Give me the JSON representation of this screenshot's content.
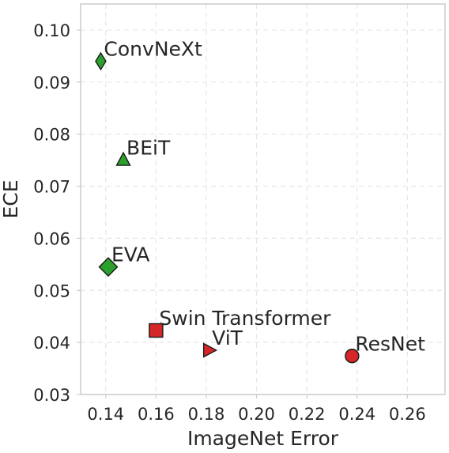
{
  "chart_data": {
    "type": "scatter",
    "xlabel": "ImageNet Error",
    "ylabel": "ECE",
    "xlim": [
      0.13,
      0.275
    ],
    "ylim": [
      0.03,
      0.105
    ],
    "xticks": [
      "0.14",
      "0.16",
      "0.18",
      "0.20",
      "0.22",
      "0.24",
      "0.26"
    ],
    "yticks": [
      "0.03",
      "0.04",
      "0.05",
      "0.06",
      "0.07",
      "0.08",
      "0.09",
      "0.10"
    ],
    "grid": true,
    "points": [
      {
        "label": "ConvNeXt",
        "x": 0.138,
        "y": 0.094,
        "marker": "thin-diamond",
        "color": "#2ca02c"
      },
      {
        "label": "BEiT",
        "x": 0.147,
        "y": 0.075,
        "marker": "triangle-up",
        "color": "#2ca02c"
      },
      {
        "label": "EVA",
        "x": 0.141,
        "y": 0.0545,
        "marker": "diamond",
        "color": "#2ca02c"
      },
      {
        "label": "Swin Transformer",
        "x": 0.16,
        "y": 0.0423,
        "marker": "square",
        "color": "#d62728"
      },
      {
        "label": "ViT",
        "x": 0.181,
        "y": 0.0385,
        "marker": "triangle-right",
        "color": "#d62728"
      },
      {
        "label": "ResNet",
        "x": 0.238,
        "y": 0.0374,
        "marker": "circle",
        "color": "#d62728"
      }
    ],
    "colors": {
      "edge": "#1a1a1a",
      "text": "#262626",
      "grid": "#e6e6e6",
      "frame": "#cccccc"
    }
  }
}
